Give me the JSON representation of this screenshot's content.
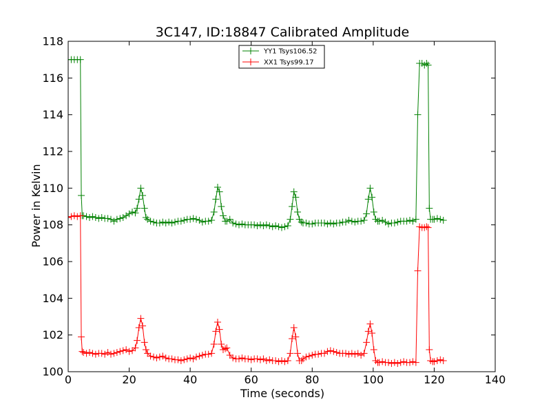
{
  "chart_data": {
    "type": "line",
    "title": "3C147, ID:18847 Calibrated Amplitude",
    "xlabel": "Time (seconds)",
    "ylabel": "Power in Kelvin",
    "xlim": [
      0,
      140
    ],
    "ylim": [
      100,
      118
    ],
    "xticks": [
      0,
      20,
      40,
      60,
      80,
      100,
      120,
      140
    ],
    "yticks": [
      100,
      102,
      104,
      106,
      108,
      110,
      112,
      114,
      116,
      118
    ],
    "grid": false,
    "legend_position": "top-center",
    "marker": "+",
    "series": [
      {
        "name": "YY1 Tsys106.52",
        "color": "#008000",
        "points": [
          [
            0,
            117.0
          ],
          [
            1,
            117.0
          ],
          [
            2,
            117.0
          ],
          [
            3,
            117.0
          ],
          [
            4,
            117.0
          ],
          [
            4.3,
            109.6
          ],
          [
            4.6,
            108.5
          ],
          [
            5,
            108.5
          ],
          [
            6,
            108.45
          ],
          [
            7,
            108.4
          ],
          [
            8,
            108.45
          ],
          [
            9,
            108.4
          ],
          [
            10,
            108.35
          ],
          [
            11,
            108.4
          ],
          [
            12,
            108.35
          ],
          [
            13,
            108.35
          ],
          [
            14,
            108.3
          ],
          [
            15,
            108.2
          ],
          [
            16,
            108.3
          ],
          [
            17,
            108.35
          ],
          [
            18,
            108.4
          ],
          [
            19,
            108.5
          ],
          [
            20,
            108.6
          ],
          [
            21,
            108.7
          ],
          [
            22,
            108.65
          ],
          [
            22.6,
            108.9
          ],
          [
            23.2,
            109.4
          ],
          [
            23.8,
            110.0
          ],
          [
            24.4,
            109.6
          ],
          [
            25,
            108.9
          ],
          [
            25.5,
            108.4
          ],
          [
            26,
            108.3
          ],
          [
            27,
            108.2
          ],
          [
            28,
            108.15
          ],
          [
            29,
            108.1
          ],
          [
            30,
            108.1
          ],
          [
            31,
            108.15
          ],
          [
            32,
            108.1
          ],
          [
            33,
            108.15
          ],
          [
            34,
            108.1
          ],
          [
            35,
            108.15
          ],
          [
            36,
            108.2
          ],
          [
            37,
            108.2
          ],
          [
            38,
            108.25
          ],
          [
            39,
            108.3
          ],
          [
            40,
            108.3
          ],
          [
            41,
            108.35
          ],
          [
            42,
            108.3
          ],
          [
            43,
            108.25
          ],
          [
            44,
            108.15
          ],
          [
            45,
            108.2
          ],
          [
            46,
            108.2
          ],
          [
            47,
            108.25
          ],
          [
            47.8,
            108.7
          ],
          [
            48.4,
            109.4
          ],
          [
            49,
            110.05
          ],
          [
            49.6,
            109.8
          ],
          [
            50.2,
            109.0
          ],
          [
            50.8,
            108.5
          ],
          [
            51.5,
            108.2
          ],
          [
            52,
            108.2
          ],
          [
            53,
            108.3
          ],
          [
            54,
            108.1
          ],
          [
            55,
            108.05
          ],
          [
            56,
            108.0
          ],
          [
            57,
            108.05
          ],
          [
            58,
            108.0
          ],
          [
            59,
            108.0
          ],
          [
            60,
            108.0
          ],
          [
            61,
            108.0
          ],
          [
            62,
            107.95
          ],
          [
            63,
            108.0
          ],
          [
            64,
            107.95
          ],
          [
            65,
            108.0
          ],
          [
            66,
            107.95
          ],
          [
            67,
            107.9
          ],
          [
            68,
            107.95
          ],
          [
            69,
            107.9
          ],
          [
            70,
            107.85
          ],
          [
            71,
            107.9
          ],
          [
            72,
            107.95
          ],
          [
            72.8,
            108.3
          ],
          [
            73.4,
            109.0
          ],
          [
            74,
            109.8
          ],
          [
            74.6,
            109.5
          ],
          [
            75.2,
            108.7
          ],
          [
            75.8,
            108.3
          ],
          [
            76.5,
            108.15
          ],
          [
            77,
            108.1
          ],
          [
            78,
            108.1
          ],
          [
            79,
            108.05
          ],
          [
            80,
            108.05
          ],
          [
            81,
            108.1
          ],
          [
            82,
            108.1
          ],
          [
            83,
            108.1
          ],
          [
            84,
            108.1
          ],
          [
            85,
            108.05
          ],
          [
            86,
            108.1
          ],
          [
            87,
            108.05
          ],
          [
            88,
            108.1
          ],
          [
            89,
            108.1
          ],
          [
            90,
            108.15
          ],
          [
            91,
            108.15
          ],
          [
            92,
            108.25
          ],
          [
            93,
            108.2
          ],
          [
            94,
            108.15
          ],
          [
            95,
            108.2
          ],
          [
            96,
            108.2
          ],
          [
            97,
            108.25
          ],
          [
            97.8,
            108.6
          ],
          [
            98.4,
            109.4
          ],
          [
            99,
            110.0
          ],
          [
            99.6,
            109.5
          ],
          [
            100.2,
            108.7
          ],
          [
            100.8,
            108.3
          ],
          [
            101.5,
            108.2
          ],
          [
            102,
            108.2
          ],
          [
            103,
            108.25
          ],
          [
            104,
            108.15
          ],
          [
            105,
            108.05
          ],
          [
            106,
            108.1
          ],
          [
            107,
            108.1
          ],
          [
            108,
            108.15
          ],
          [
            109,
            108.2
          ],
          [
            110,
            108.2
          ],
          [
            111,
            108.2
          ],
          [
            112,
            108.25
          ],
          [
            113,
            108.2
          ],
          [
            114,
            108.3
          ],
          [
            114.6,
            114.0
          ],
          [
            115.2,
            116.8
          ],
          [
            116,
            116.8
          ],
          [
            116.8,
            116.7
          ],
          [
            117.5,
            116.8
          ],
          [
            118,
            116.7
          ],
          [
            118.4,
            108.9
          ],
          [
            118.8,
            108.3
          ],
          [
            119.5,
            108.3
          ],
          [
            120,
            108.3
          ],
          [
            121,
            108.35
          ],
          [
            122,
            108.3
          ],
          [
            123,
            108.25
          ]
        ]
      },
      {
        "name": "XX1 Tsys99.17",
        "color": "#ff0000",
        "points": [
          [
            0,
            108.4
          ],
          [
            1,
            108.45
          ],
          [
            2,
            108.5
          ],
          [
            3,
            108.45
          ],
          [
            4,
            108.5
          ],
          [
            4.3,
            101.9
          ],
          [
            4.6,
            101.1
          ],
          [
            5,
            101.05
          ],
          [
            6,
            101.0
          ],
          [
            7,
            101.05
          ],
          [
            8,
            101.0
          ],
          [
            9,
            100.95
          ],
          [
            10,
            101.0
          ],
          [
            11,
            101.0
          ],
          [
            12,
            100.95
          ],
          [
            13,
            101.05
          ],
          [
            14,
            100.95
          ],
          [
            15,
            101.0
          ],
          [
            16,
            101.05
          ],
          [
            17,
            101.1
          ],
          [
            18,
            101.15
          ],
          [
            19,
            101.2
          ],
          [
            20,
            101.1
          ],
          [
            21,
            101.15
          ],
          [
            22,
            101.3
          ],
          [
            22.6,
            101.7
          ],
          [
            23.2,
            102.4
          ],
          [
            23.8,
            102.9
          ],
          [
            24.4,
            102.5
          ],
          [
            25,
            101.6
          ],
          [
            25.5,
            101.2
          ],
          [
            26,
            101.0
          ],
          [
            27,
            100.85
          ],
          [
            28,
            100.8
          ],
          [
            29,
            100.75
          ],
          [
            30,
            100.8
          ],
          [
            31,
            100.85
          ],
          [
            32,
            100.75
          ],
          [
            33,
            100.7
          ],
          [
            34,
            100.7
          ],
          [
            35,
            100.65
          ],
          [
            36,
            100.65
          ],
          [
            37,
            100.6
          ],
          [
            38,
            100.65
          ],
          [
            39,
            100.7
          ],
          [
            40,
            100.75
          ],
          [
            41,
            100.7
          ],
          [
            42,
            100.8
          ],
          [
            43,
            100.85
          ],
          [
            44,
            100.9
          ],
          [
            45,
            100.95
          ],
          [
            46,
            100.95
          ],
          [
            47,
            101.0
          ],
          [
            47.8,
            101.5
          ],
          [
            48.4,
            102.2
          ],
          [
            49,
            102.7
          ],
          [
            49.6,
            102.3
          ],
          [
            50.2,
            101.5
          ],
          [
            50.8,
            101.2
          ],
          [
            51.5,
            101.25
          ],
          [
            52,
            101.3
          ],
          [
            53,
            100.9
          ],
          [
            54,
            100.75
          ],
          [
            55,
            100.7
          ],
          [
            56,
            100.7
          ],
          [
            57,
            100.75
          ],
          [
            58,
            100.7
          ],
          [
            59,
            100.7
          ],
          [
            60,
            100.65
          ],
          [
            61,
            100.7
          ],
          [
            62,
            100.7
          ],
          [
            63,
            100.65
          ],
          [
            64,
            100.7
          ],
          [
            65,
            100.6
          ],
          [
            66,
            100.65
          ],
          [
            67,
            100.6
          ],
          [
            68,
            100.6
          ],
          [
            69,
            100.55
          ],
          [
            70,
            100.6
          ],
          [
            71,
            100.55
          ],
          [
            72,
            100.6
          ],
          [
            72.8,
            101.0
          ],
          [
            73.4,
            101.8
          ],
          [
            74,
            102.4
          ],
          [
            74.6,
            101.9
          ],
          [
            75.2,
            101.0
          ],
          [
            75.8,
            100.6
          ],
          [
            76.5,
            100.6
          ],
          [
            77,
            100.7
          ],
          [
            78,
            100.8
          ],
          [
            79,
            100.85
          ],
          [
            80,
            100.9
          ],
          [
            81,
            100.95
          ],
          [
            82,
            100.95
          ],
          [
            83,
            101.0
          ],
          [
            84,
            101.0
          ],
          [
            85,
            101.1
          ],
          [
            86,
            101.15
          ],
          [
            87,
            101.1
          ],
          [
            88,
            101.05
          ],
          [
            89,
            101.0
          ],
          [
            90,
            101.0
          ],
          [
            91,
            101.0
          ],
          [
            92,
            100.95
          ],
          [
            93,
            101.0
          ],
          [
            94,
            100.95
          ],
          [
            95,
            101.0
          ],
          [
            96,
            100.9
          ],
          [
            97,
            101.0
          ],
          [
            97.8,
            101.6
          ],
          [
            98.4,
            102.2
          ],
          [
            99,
            102.6
          ],
          [
            99.6,
            102.1
          ],
          [
            100.2,
            101.2
          ],
          [
            100.8,
            100.6
          ],
          [
            101.5,
            100.5
          ],
          [
            102,
            100.5
          ],
          [
            103,
            100.55
          ],
          [
            104,
            100.5
          ],
          [
            105,
            100.5
          ],
          [
            106,
            100.45
          ],
          [
            107,
            100.5
          ],
          [
            108,
            100.45
          ],
          [
            109,
            100.5
          ],
          [
            110,
            100.55
          ],
          [
            111,
            100.5
          ],
          [
            112,
            100.5
          ],
          [
            113,
            100.55
          ],
          [
            114,
            100.5
          ],
          [
            114.6,
            105.5
          ],
          [
            115.2,
            107.9
          ],
          [
            116,
            107.85
          ],
          [
            116.8,
            107.85
          ],
          [
            117.5,
            107.9
          ],
          [
            118,
            107.85
          ],
          [
            118.4,
            101.2
          ],
          [
            118.8,
            100.6
          ],
          [
            119.5,
            100.55
          ],
          [
            120,
            100.55
          ],
          [
            121,
            100.6
          ],
          [
            122,
            100.65
          ],
          [
            123,
            100.6
          ]
        ]
      }
    ]
  }
}
